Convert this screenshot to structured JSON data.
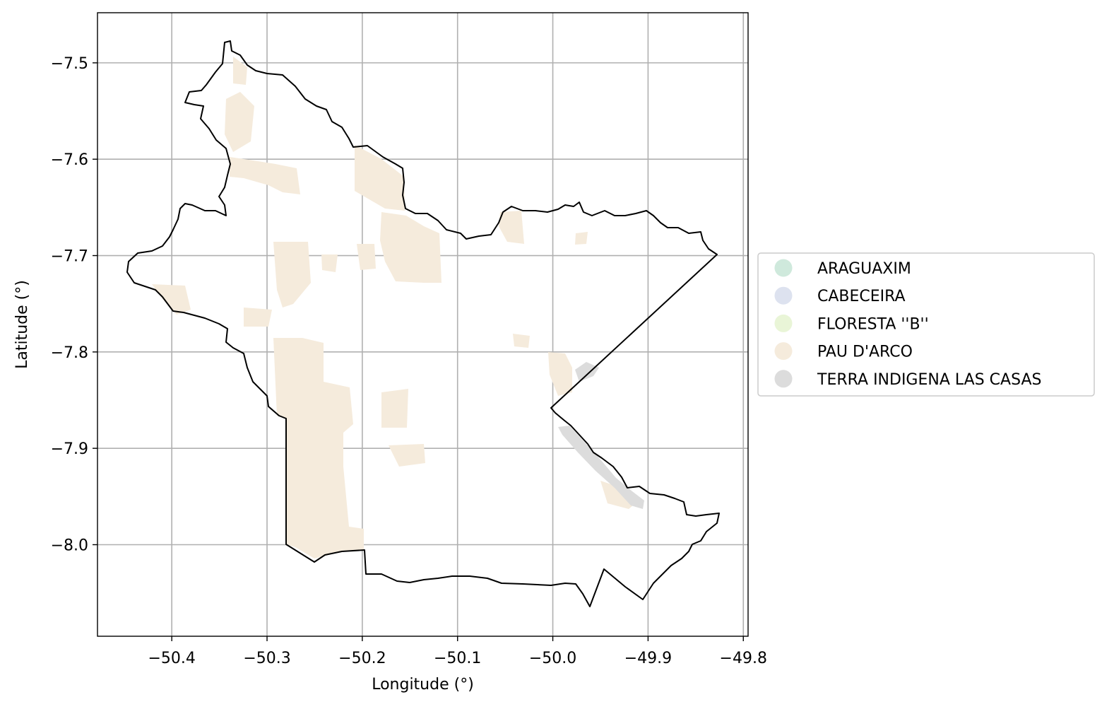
{
  "map": {
    "xlabel": "Longitude (°)",
    "ylabel": "Latitude (°)",
    "xlim": [
      -50.478,
      -49.795
    ],
    "ylim": [
      -8.095,
      -7.448
    ],
    "xticks": [
      -50.4,
      -50.3,
      -50.2,
      -50.1,
      -50.0,
      -49.9,
      -49.8
    ],
    "xtick_labels": [
      "−50.4",
      "−50.3",
      "−50.2",
      "−50.1",
      "−50.0",
      "−49.9",
      "−49.8"
    ],
    "yticks": [
      -7.5,
      -7.6,
      -7.7,
      -7.8,
      -7.9,
      -8.0
    ],
    "ytick_labels": [
      "−7.5",
      "−7.6",
      "−7.7",
      "−7.8",
      "−7.9",
      "−8.0"
    ],
    "grid": true,
    "legend_position": "outside-right",
    "legend": [
      {
        "label": "ARAGUAXIM",
        "color": "#cfe9dc"
      },
      {
        "label": "CABECEIRA",
        "color": "#dde2ef"
      },
      {
        "label": "FLORESTA ''B''",
        "color": "#e9f5d7"
      },
      {
        "label": "PAU D'ARCO",
        "color": "#f5ebdc"
      },
      {
        "label": "TERRA INDIGENA LAS CASAS",
        "color": "#dcdcdc"
      }
    ],
    "colors": {
      "grid": "#b0b0b0",
      "boundary": "#000000",
      "pau_darco_fill": "#f5ebdc",
      "terra_indigena_fill": "#dcdcdc"
    }
  }
}
